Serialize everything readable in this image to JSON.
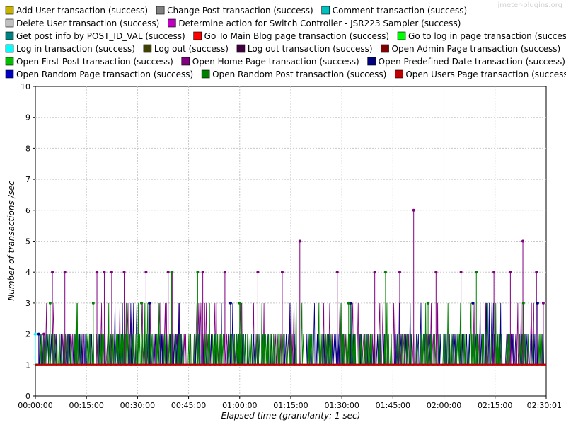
{
  "watermark": "jmeter-plugins.org",
  "chart_data": {
    "type": "line",
    "title": "",
    "xlabel": "Elapsed time (granularity: 1 sec)",
    "ylabel": "Number of transactions /sec",
    "xlim": [
      0,
      9001
    ],
    "ylim": [
      0,
      10
    ],
    "x_tick_values": [
      0,
      900,
      1800,
      2700,
      3600,
      4500,
      5400,
      6300,
      7200,
      8100,
      9001
    ],
    "x_tick_labels": [
      "00:00:00",
      "00:15:00",
      "00:30:00",
      "00:45:00",
      "01:00:00",
      "01:15:00",
      "01:30:00",
      "01:45:00",
      "02:00:00",
      "02:15:00",
      "02:30:01"
    ],
    "y_ticks": [
      0,
      1,
      2,
      3,
      4,
      5,
      6,
      7,
      8,
      9,
      10
    ],
    "grid": true,
    "legend_position": "top",
    "series": [
      {
        "name": "Add User transaction (success)",
        "color": "#c8b400",
        "values": []
      },
      {
        "name": "Change Post transaction (success)",
        "color": "#808080",
        "values": []
      },
      {
        "name": "Comment transaction (success)",
        "color": "#00c0c0",
        "values": []
      },
      {
        "name": "Delete User transaction (success)",
        "color": "#c0c0c0",
        "values": []
      },
      {
        "name": "Determine action for Switch Controller - JSR223 Sampler (success)",
        "color": "#c000c0",
        "values": []
      },
      {
        "name": "Get post info by POST_ID_VAL (success)",
        "color": "#008080",
        "values": []
      },
      {
        "name": "Go To Main Blog page transaction (success)",
        "color": "#ff0000",
        "values": []
      },
      {
        "name": "Go to log in page transaction (success)",
        "color": "#00ff00",
        "values": []
      },
      {
        "name": "Log in transaction (success)",
        "color": "#00ffff",
        "values": [
          [
            0,
            2
          ],
          [
            30,
            1
          ]
        ]
      },
      {
        "name": "Log out (success)",
        "color": "#404000",
        "values": []
      },
      {
        "name": "Log out transaction (success)",
        "color": "#400040",
        "values": []
      },
      {
        "name": "Open Admin Page transaction (success)",
        "color": "#800000",
        "values": [
          [
            0,
            1
          ],
          [
            9001,
            1
          ]
        ]
      },
      {
        "name": "Open First Post transaction (success)",
        "color": "#00c000",
        "values": []
      },
      {
        "name": "Open Home Page transaction (success)",
        "color": "#800080",
        "values": [
          [
            150,
            2
          ],
          [
            300,
            4
          ],
          [
            520,
            4
          ],
          [
            1085,
            4
          ],
          [
            1215,
            4
          ],
          [
            1345,
            4
          ],
          [
            1565,
            4
          ],
          [
            1950,
            4
          ],
          [
            2340,
            4
          ],
          [
            2410,
            4
          ],
          [
            2950,
            4
          ],
          [
            3340,
            4
          ],
          [
            3920,
            4
          ],
          [
            4350,
            4
          ],
          [
            4660,
            5
          ],
          [
            5320,
            4
          ],
          [
            5980,
            4
          ],
          [
            6420,
            4
          ],
          [
            6666,
            6
          ],
          [
            7060,
            4
          ],
          [
            7500,
            4
          ],
          [
            8080,
            4
          ],
          [
            8370,
            4
          ],
          [
            8590,
            5
          ],
          [
            8830,
            4
          ],
          [
            8950,
            3
          ]
        ]
      },
      {
        "name": "Open Predefined Date transaction (success)",
        "color": "#000080",
        "values": [
          [
            60,
            2
          ],
          [
            2010,
            3
          ],
          [
            3440,
            3
          ],
          [
            5550,
            3
          ],
          [
            7710,
            3
          ],
          [
            8850,
            3
          ]
        ]
      },
      {
        "name": "Open Random Page transaction (success)",
        "color": "#0000c0",
        "values": []
      },
      {
        "name": "Open Random Post transaction (success)",
        "color": "#008000",
        "values": [
          [
            260,
            3
          ],
          [
            1020,
            3
          ],
          [
            1870,
            3
          ],
          [
            2400,
            4
          ],
          [
            2860,
            4
          ],
          [
            3600,
            3
          ],
          [
            5520,
            3
          ],
          [
            6170,
            4
          ],
          [
            6920,
            3
          ],
          [
            7770,
            4
          ],
          [
            8600,
            3
          ]
        ]
      },
      {
        "name": "Open Users Page transaction (success)",
        "color": "#c00000",
        "values": [
          [
            0,
            1
          ],
          [
            9001,
            1
          ]
        ]
      }
    ]
  }
}
